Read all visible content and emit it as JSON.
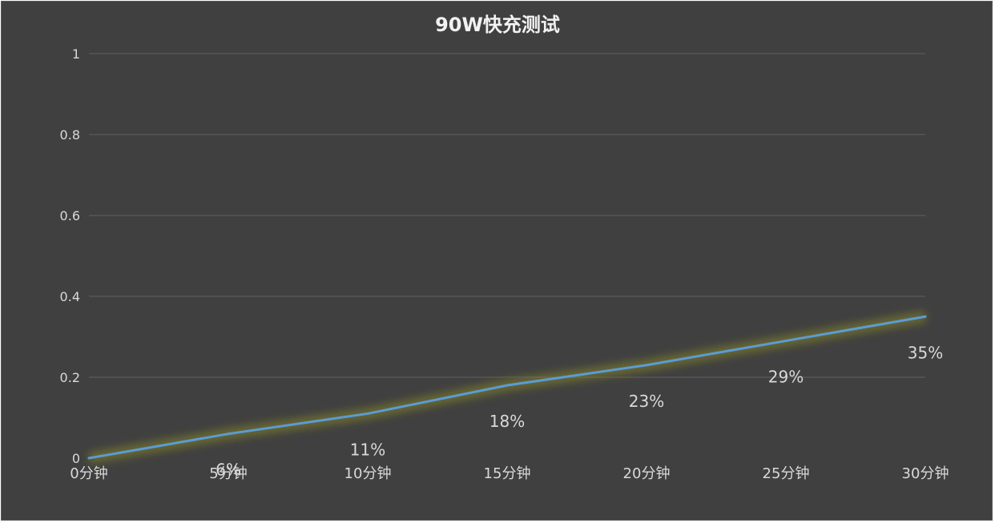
{
  "chart_data": {
    "type": "line",
    "title": "90W快充测试",
    "categories": [
      "0分钟",
      "5分钟",
      "10分钟",
      "15分钟",
      "20分钟",
      "25分钟",
      "30分钟"
    ],
    "series": [
      {
        "values": [
          0,
          0.06,
          0.11,
          0.18,
          0.23,
          0.29,
          0.35
        ],
        "data_labels": [
          "",
          "6%",
          "11%",
          "18%",
          "23%",
          "29%",
          "35%"
        ],
        "color": "#5b9bd5",
        "glow_color": "#8a8a2a"
      }
    ],
    "y_ticks": [
      "0",
      "0.2",
      "0.4",
      "0.6",
      "0.8",
      "1"
    ],
    "ylim": [
      0,
      1
    ],
    "grid": true,
    "legend": "none",
    "background": "#404040"
  }
}
